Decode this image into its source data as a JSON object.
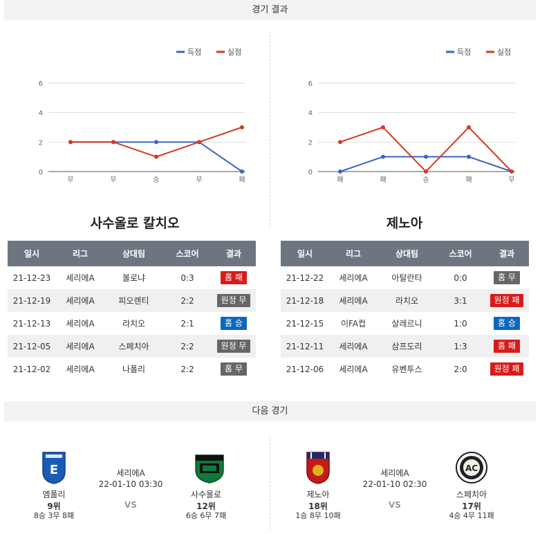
{
  "headers": {
    "results": "경기 결과",
    "next": "다음 경기"
  },
  "legend": {
    "scored": "득점",
    "conceded": "실점"
  },
  "colors": {
    "scored": "#3a64c5",
    "conceded": "#d33a1f",
    "loss": "#d71c1c",
    "draw": "#666666",
    "win": "#0c68bf"
  },
  "table_headers": [
    "일시",
    "리그",
    "상대팀",
    "스코어",
    "결과"
  ],
  "teams": [
    {
      "name": "사수올로 칼치오",
      "rows": [
        {
          "date": "21-12-23",
          "league": "세리에A",
          "opp": "볼로냐",
          "score": "0:3",
          "result": "홈 패",
          "type": "loss"
        },
        {
          "date": "21-12-19",
          "league": "세리에A",
          "opp": "피오렌티",
          "score": "2:2",
          "result": "원정 무",
          "type": "draw"
        },
        {
          "date": "21-12-13",
          "league": "세리에A",
          "opp": "라치오",
          "score": "2:1",
          "result": "홈 승",
          "type": "win"
        },
        {
          "date": "21-12-05",
          "league": "세리에A",
          "opp": "스페치아",
          "score": "2:2",
          "result": "원정 무",
          "type": "draw"
        },
        {
          "date": "21-12-02",
          "league": "세리에A",
          "opp": "나폴리",
          "score": "2:2",
          "result": "홈 무",
          "type": "draw"
        }
      ]
    },
    {
      "name": "제노아",
      "rows": [
        {
          "date": "21-12-22",
          "league": "세리에A",
          "opp": "아탈란타",
          "score": "0:0",
          "result": "홈 무",
          "type": "draw"
        },
        {
          "date": "21-12-18",
          "league": "세리에A",
          "opp": "라치오",
          "score": "3:1",
          "result": "원정 패",
          "type": "loss"
        },
        {
          "date": "21-12-15",
          "league": "이FA컵",
          "opp": "살레르니",
          "score": "1:0",
          "result": "홈 승",
          "type": "win"
        },
        {
          "date": "21-12-11",
          "league": "세리에A",
          "opp": "삼프도리",
          "score": "1:3",
          "result": "홈 패",
          "type": "loss"
        },
        {
          "date": "21-12-06",
          "league": "세리에A",
          "opp": "유벤투스",
          "score": "2:0",
          "result": "원정 패",
          "type": "loss"
        }
      ]
    }
  ],
  "chart_data": [
    {
      "type": "line",
      "categories": [
        "무",
        "무",
        "승",
        "무",
        "패"
      ],
      "ylim": [
        0,
        6
      ],
      "yticks": [
        0,
        2,
        4,
        6
      ],
      "legend_position": "top-right",
      "series": [
        {
          "name": "득점",
          "values": [
            2,
            2,
            2,
            2,
            0
          ]
        },
        {
          "name": "실점",
          "values": [
            2,
            2,
            1,
            2,
            3
          ]
        }
      ]
    },
    {
      "type": "line",
      "categories": [
        "패",
        "패",
        "승",
        "패",
        "무"
      ],
      "ylim": [
        0,
        6
      ],
      "yticks": [
        0,
        2,
        4,
        6
      ],
      "legend_position": "top-right",
      "series": [
        {
          "name": "득점",
          "values": [
            0,
            1,
            1,
            1,
            0
          ]
        },
        {
          "name": "실점",
          "values": [
            2,
            3,
            0,
            3,
            0
          ]
        }
      ]
    }
  ],
  "next_matches": [
    {
      "league": "세리에A",
      "datetime": "22-01-10 03:30",
      "vs": "VS",
      "home": {
        "name": "엠폴리",
        "rank": "9위",
        "record": "8승 3무 8패",
        "logo": "empoli-logo"
      },
      "away": {
        "name": "사수올로",
        "rank": "12위",
        "record": "6승 6무 7패",
        "logo": "sassuolo-logo"
      }
    },
    {
      "league": "세리에A",
      "datetime": "22-01-10 02:30",
      "vs": "VS",
      "home": {
        "name": "제노아",
        "rank": "18위",
        "record": "1승 8무 10패",
        "logo": "genoa-logo"
      },
      "away": {
        "name": "스페치아",
        "rank": "17위",
        "record": "4승 4무 11패",
        "logo": "spezia-logo"
      }
    }
  ]
}
